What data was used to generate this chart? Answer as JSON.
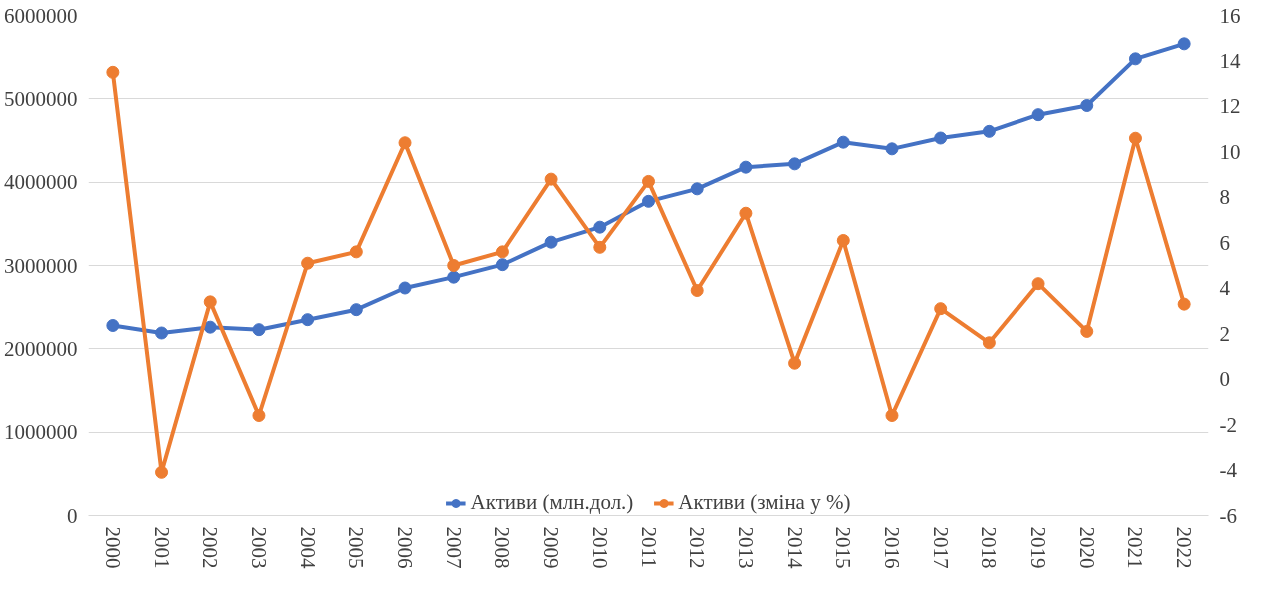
{
  "chart_data": {
    "type": "line",
    "categories": [
      "2000",
      "2001",
      "2002",
      "2003",
      "2004",
      "2005",
      "2006",
      "2007",
      "2008",
      "2009",
      "2010",
      "2011",
      "2012",
      "2013",
      "2014",
      "2015",
      "2016",
      "2017",
      "2018",
      "2019",
      "2020",
      "2021",
      "2022"
    ],
    "series": [
      {
        "name": "Активи (млн.дол.)",
        "color": "#4472c4",
        "values": [
          2280000,
          2190000,
          2260000,
          2230000,
          2350000,
          2470000,
          2730000,
          2860000,
          3010000,
          3280000,
          3460000,
          3770000,
          3920000,
          4180000,
          4220000,
          4480000,
          4400000,
          4530000,
          4610000,
          4810000,
          4920000,
          5480000,
          5660000
        ]
      },
      {
        "name": "Активи (зміна у %)",
        "color": "#ed7d31",
        "axis": "y2",
        "values": [
          13.5,
          -4.1,
          3.4,
          -1.6,
          5.1,
          5.6,
          10.4,
          5.0,
          5.6,
          8.8,
          5.8,
          8.7,
          3.9,
          7.3,
          0.7,
          6.1,
          -1.6,
          3.1,
          1.6,
          4.2,
          2.1,
          10.6,
          3.3
        ]
      }
    ],
    "ylim": [
      0,
      6000000
    ],
    "yticks": [
      0,
      1000000,
      2000000,
      3000000,
      4000000,
      5000000,
      6000000
    ],
    "y2lim": [
      -6,
      16
    ],
    "y2ticks": [
      -6,
      -4,
      -2,
      0,
      2,
      4,
      6,
      8,
      10,
      12,
      14,
      16
    ],
    "grid": "y",
    "legend": "bottom",
    "marker": "circle",
    "line_style": "solid"
  }
}
